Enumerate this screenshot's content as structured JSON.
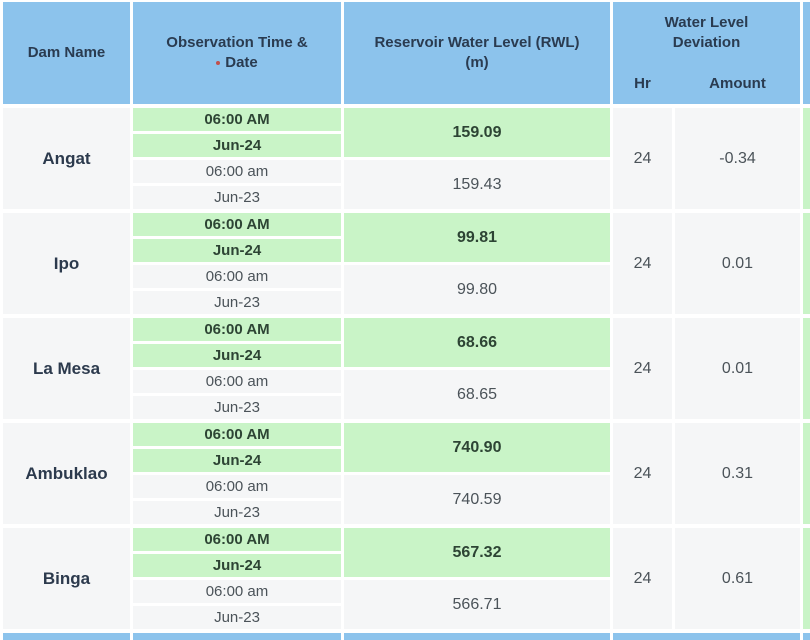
{
  "colors": {
    "header_blue": "#8cc3ec",
    "highlight_green": "#c9f4c7",
    "cell_gray": "#f5f6f7",
    "header_text": "#2a3b50",
    "marker_red": "#c0504d"
  },
  "header": {
    "dam_name": "Dam Name",
    "observation_line1": "Observation Time &",
    "observation_line2": "Date",
    "rwl_line1": "Reservoir Water Level (RWL)",
    "rwl_line2": "(m)",
    "deviation": "Water Level Deviation",
    "hr": "Hr",
    "amount": "Amount"
  },
  "rows": [
    {
      "dam": "Angat",
      "current_time": "06:00 AM",
      "current_date": "Jun-24",
      "prev_time": "06:00 am",
      "prev_date": "Jun-23",
      "current_rwl": "159.09",
      "prev_rwl": "159.43",
      "hr": "24",
      "amount": "-0.34"
    },
    {
      "dam": "Ipo",
      "current_time": "06:00 AM",
      "current_date": "Jun-24",
      "prev_time": "06:00 am",
      "prev_date": "Jun-23",
      "current_rwl": "99.81",
      "prev_rwl": "99.80",
      "hr": "24",
      "amount": "0.01"
    },
    {
      "dam": "La Mesa",
      "current_time": "06:00 AM",
      "current_date": "Jun-24",
      "prev_time": "06:00 am",
      "prev_date": "Jun-23",
      "current_rwl": "68.66",
      "prev_rwl": "68.65",
      "hr": "24",
      "amount": "0.01"
    },
    {
      "dam": "Ambuklao",
      "current_time": "06:00 AM",
      "current_date": "Jun-24",
      "prev_time": "06:00 am",
      "prev_date": "Jun-23",
      "current_rwl": "740.90",
      "prev_rwl": "740.59",
      "hr": "24",
      "amount": "0.31"
    },
    {
      "dam": "Binga",
      "current_time": "06:00 AM",
      "current_date": "Jun-24",
      "prev_time": "06:00 am",
      "prev_date": "Jun-23",
      "current_rwl": "567.32",
      "prev_rwl": "566.71",
      "hr": "24",
      "amount": "0.61"
    }
  ]
}
